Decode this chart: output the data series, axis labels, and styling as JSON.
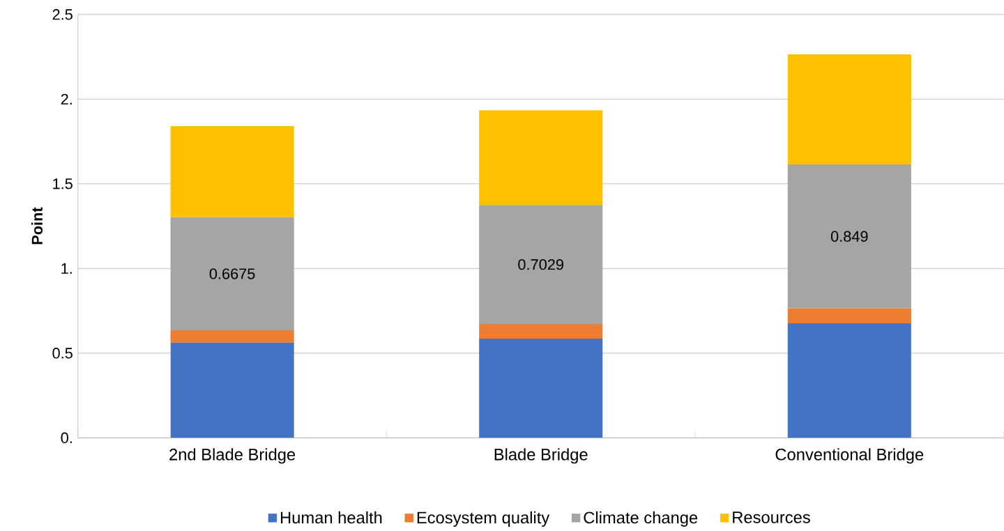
{
  "chart_data": {
    "type": "bar",
    "stacked": true,
    "ylabel": "Point",
    "categories": [
      "2nd Blade Bridge",
      "Blade Bridge",
      "Conventional Bridge"
    ],
    "series": [
      {
        "name": "Human health",
        "color": "#4472c4",
        "values": [
          0.562,
          0.586,
          0.676
        ]
      },
      {
        "name": "Ecosystem quality",
        "color": "#ed7d31",
        "values": [
          0.073,
          0.086,
          0.089
        ]
      },
      {
        "name": "Climate change",
        "color": "#a5a5a5",
        "values": [
          0.6675,
          0.7029,
          0.849
        ],
        "value_labels": [
          "0.6675",
          "0.7029",
          "0.849"
        ]
      },
      {
        "name": "Resources",
        "color": "#ffc000",
        "values": [
          0.538,
          0.559,
          0.65
        ]
      }
    ],
    "ylim": [
      0,
      2.5
    ],
    "yticks": [
      {
        "value": 0,
        "label": "0."
      },
      {
        "value": 0.5,
        "label": "0.5"
      },
      {
        "value": 1,
        "label": "1."
      },
      {
        "value": 1.5,
        "label": "1.5"
      },
      {
        "value": 2,
        "label": "2."
      },
      {
        "value": 2.5,
        "label": "2.5"
      }
    ],
    "grid": "y",
    "legend": "bottom"
  }
}
